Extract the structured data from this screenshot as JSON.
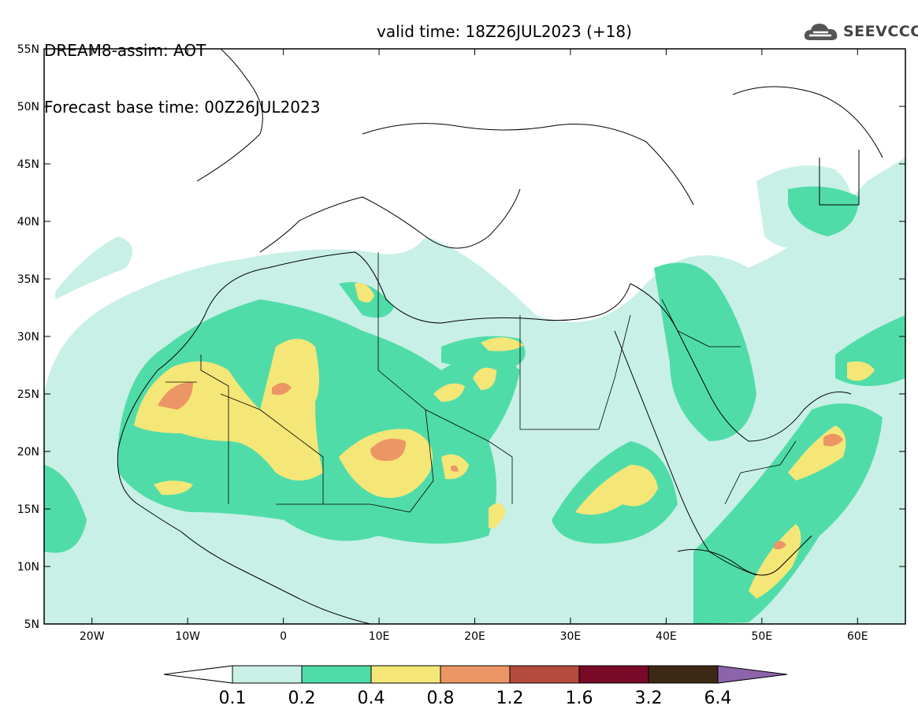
{
  "title": {
    "line1": "DREAM8-assim: AOT",
    "base_time": "Forecast base time: 00Z26JUL2023",
    "valid_time": "valid time: 18Z26JUL2023 (+18)"
  },
  "logo": {
    "text": "SEEVCCC",
    "icon": "cloud-logo-icon"
  },
  "map": {
    "lon_range": [
      -25,
      65
    ],
    "lat_range": [
      5,
      55
    ],
    "lon_ticks": [
      {
        "value": -20,
        "label": "20W"
      },
      {
        "value": -10,
        "label": "10W"
      },
      {
        "value": 0,
        "label": "0"
      },
      {
        "value": 10,
        "label": "10E"
      },
      {
        "value": 20,
        "label": "20E"
      },
      {
        "value": 30,
        "label": "30E"
      },
      {
        "value": 40,
        "label": "40E"
      },
      {
        "value": 50,
        "label": "50E"
      },
      {
        "value": 60,
        "label": "60E"
      }
    ],
    "lat_ticks": [
      {
        "value": 5,
        "label": "5N"
      },
      {
        "value": 10,
        "label": "10N"
      },
      {
        "value": 15,
        "label": "15N"
      },
      {
        "value": 20,
        "label": "20N"
      },
      {
        "value": 25,
        "label": "25N"
      },
      {
        "value": 30,
        "label": "30N"
      },
      {
        "value": 35,
        "label": "35N"
      },
      {
        "value": 40,
        "label": "40N"
      },
      {
        "value": 45,
        "label": "45N"
      },
      {
        "value": 50,
        "label": "50N"
      },
      {
        "value": 55,
        "label": "55N"
      }
    ]
  },
  "colorbar": {
    "levels": [
      "0.1",
      "0.2",
      "0.4",
      "0.8",
      "1.2",
      "1.6",
      "3.2",
      "6.4"
    ],
    "colors": [
      "#ffffff",
      "#c8f0e6",
      "#50dca8",
      "#f5e678",
      "#eb9664",
      "#b44b3c",
      "#780a28",
      "#3c2814",
      "#8c64aa"
    ]
  }
}
